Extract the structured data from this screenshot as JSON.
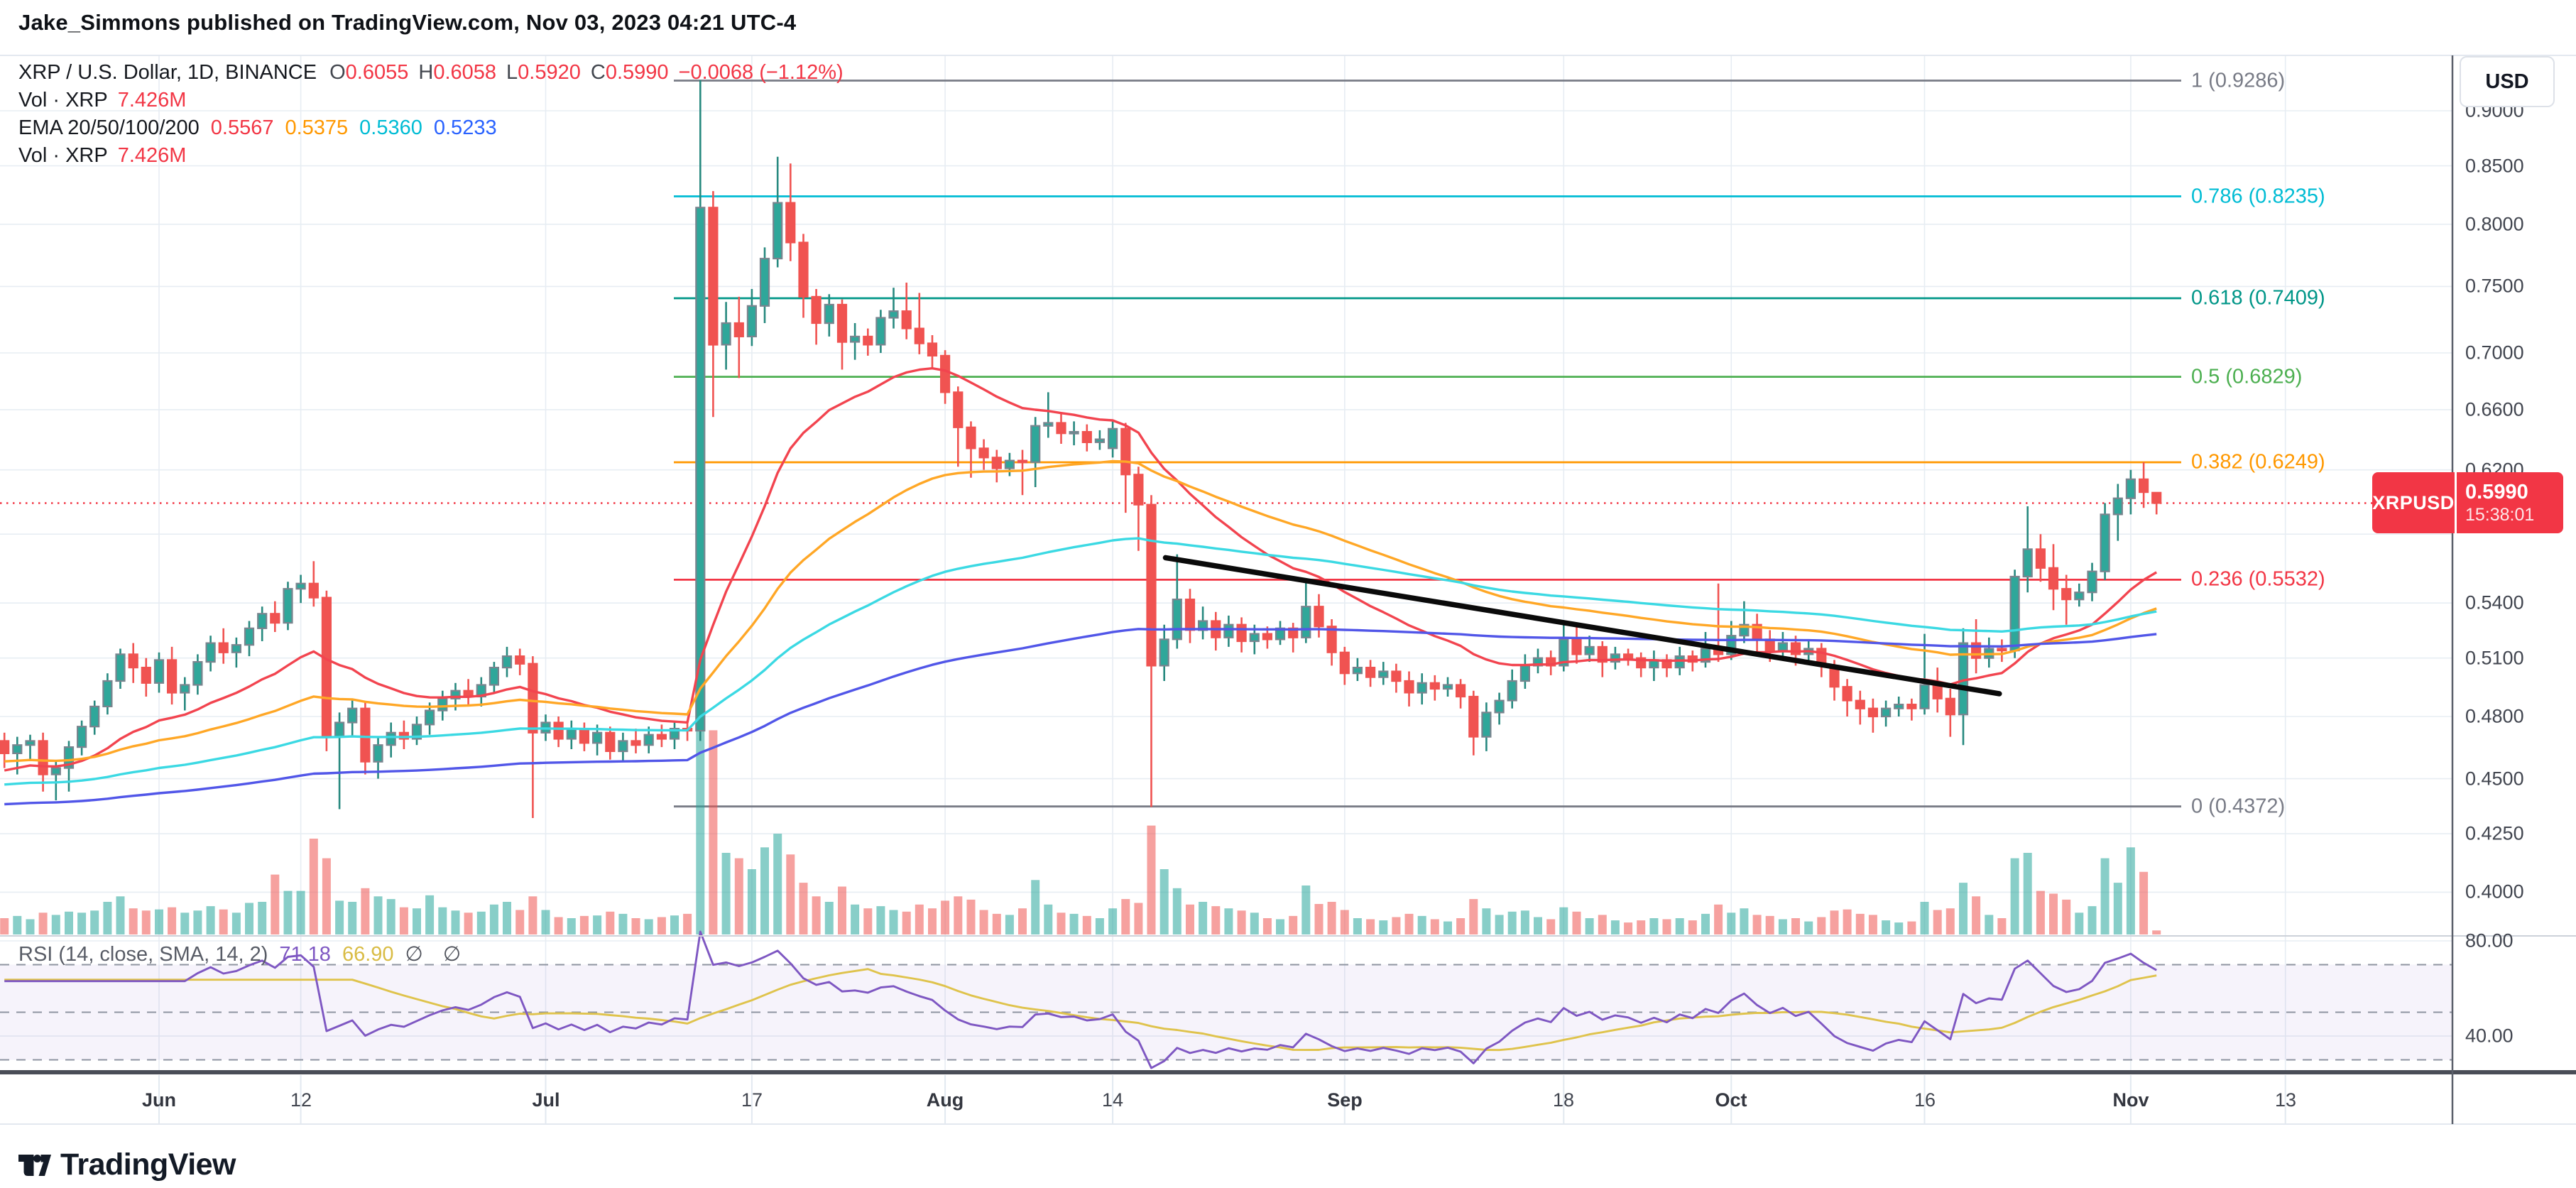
{
  "header": {
    "title": "Jake_Simmons published on TradingView.com, Nov 03, 2023 04:21 UTC-4"
  },
  "legend": {
    "symbol": "XRP / U.S. Dollar, 1D, BINANCE",
    "o_label": "O",
    "o": "0.6055",
    "h_label": "H",
    "h": "0.6058",
    "l_label": "L",
    "l": "0.5920",
    "c_label": "C",
    "c": "0.5990",
    "change": "−0.0068 (−1.12%)",
    "vol_label": "Vol · XRP",
    "vol_value": "7.426M",
    "ema_label": "EMA 20/50/100/200",
    "ema_values": [
      "0.5567",
      "0.5375",
      "0.5360",
      "0.5233"
    ],
    "vol2_label": "Vol · XRP",
    "vol2_value": "7.426M",
    "rsi_label": "RSI (14, close, SMA, 14, 2)",
    "rsi_value": "71.18",
    "rsi_sma_value": "66.90",
    "rsi_empty": "∅ ∅"
  },
  "price_axis": {
    "currency": "USD",
    "ticks": [
      {
        "t": "0.9000",
        "p": 0.9
      },
      {
        "t": "0.8500",
        "p": 0.85
      },
      {
        "t": "0.8000",
        "p": 0.8
      },
      {
        "t": "0.7500",
        "p": 0.75
      },
      {
        "t": "0.7000",
        "p": 0.7
      },
      {
        "t": "0.6600",
        "p": 0.66
      },
      {
        "t": "0.6200",
        "p": 0.62
      },
      {
        "t": "",
        "p": 0.58
      },
      {
        "t": "0.5400",
        "p": 0.54
      },
      {
        "t": "0.5100",
        "p": 0.51
      },
      {
        "t": "0.4800",
        "p": 0.48
      },
      {
        "t": "0.4500",
        "p": 0.45
      },
      {
        "t": "0.4250",
        "p": 0.425
      },
      {
        "t": "0.4000",
        "p": 0.4
      }
    ]
  },
  "time_axis": {
    "ticks": [
      {
        "t": "Jun",
        "i": 12,
        "month": true
      },
      {
        "t": "12",
        "i": 23,
        "month": false
      },
      {
        "t": "Jul",
        "i": 42,
        "month": true
      },
      {
        "t": "17",
        "i": 58,
        "month": false
      },
      {
        "t": "Aug",
        "i": 73,
        "month": true
      },
      {
        "t": "14",
        "i": 86,
        "month": false
      },
      {
        "t": "Sep",
        "i": 104,
        "month": true
      },
      {
        "t": "18",
        "i": 121,
        "month": false
      },
      {
        "t": "Oct",
        "i": 134,
        "month": true
      },
      {
        "t": "16",
        "i": 149,
        "month": false
      },
      {
        "t": "Nov",
        "i": 165,
        "month": true
      },
      {
        "t": "13",
        "i": 177,
        "month": false
      }
    ]
  },
  "rsi_axis": {
    "labels": [
      {
        "t": "80.00",
        "v": 80
      },
      {
        "t": "40.00",
        "v": 40
      }
    ],
    "dashed": [
      70,
      50,
      30
    ],
    "band": [
      30,
      70
    ]
  },
  "fib_levels": [
    {
      "label": "1 (0.9286)",
      "p": 0.9286,
      "c": "#787b86"
    },
    {
      "label": "0.786 (0.8235)",
      "p": 0.8235,
      "c": "#00bcd4"
    },
    {
      "label": "0.618 (0.7409)",
      "p": 0.7409,
      "c": "#009688"
    },
    {
      "label": "0.5 (0.6829)",
      "p": 0.6829,
      "c": "#4caf50"
    },
    {
      "label": "0.382 (0.6249)",
      "p": 0.6249,
      "c": "#ff9800"
    },
    {
      "label": "0.236 (0.5532)",
      "p": 0.5532,
      "c": "#f23645"
    },
    {
      "label": "0 (0.4372)",
      "p": 0.4372,
      "c": "#787b86"
    }
  ],
  "price_line": {
    "price": 0.599,
    "tag": "XRPUSD",
    "value": "0.5990",
    "time": "15:38:01",
    "color": "#f23645"
  },
  "trendline": {
    "i1": 90.1,
    "p1": 0.566,
    "i2": 154.8,
    "p2": 0.4915,
    "color": "#0a0a0a"
  },
  "logo": {
    "text": "TradingView"
  },
  "colors": {
    "up": "#2fa79a",
    "up_border": "#79848e",
    "up_wick": "#27897f",
    "down": "#f05351",
    "vol_up": "#26a69a",
    "vol_down": "#ef5350",
    "grid": "#e7edf3",
    "dotted": "#f23645",
    "rsi": "#7e57c2",
    "rsi_sma": "#dfc34c",
    "band_fill": "#7e57c2",
    "dash_line": "#8f95a1",
    "frame": "#4a4d57",
    "axis_line": "#5a5f6a"
  },
  "chart_data": {
    "type": "candlestick",
    "symbol": "XRPUSD",
    "exchange": "BINANCE",
    "interval": "1D",
    "title": "XRP / U.S. Dollar",
    "start_date": "2023-05-20",
    "end_date": "2023-11-03",
    "price_scale": "log",
    "ylim": [
      0.393,
      0.95
    ],
    "volume_unit": "M XRP",
    "current": {
      "open": 0.6055,
      "high": 0.6058,
      "low": 0.592,
      "close": 0.599,
      "volume_m": 7.426
    },
    "candles": [
      [
        0.468,
        0.472,
        0.455,
        0.462,
        30
      ],
      [
        0.462,
        0.47,
        0.452,
        0.466,
        34
      ],
      [
        0.466,
        0.471,
        0.459,
        0.468,
        28
      ],
      [
        0.468,
        0.472,
        0.444,
        0.452,
        40
      ],
      [
        0.452,
        0.458,
        0.44,
        0.455,
        36
      ],
      [
        0.455,
        0.468,
        0.444,
        0.465,
        42
      ],
      [
        0.465,
        0.478,
        0.461,
        0.475,
        40
      ],
      [
        0.475,
        0.488,
        0.471,
        0.485,
        44
      ],
      [
        0.485,
        0.502,
        0.481,
        0.498,
        60
      ],
      [
        0.498,
        0.515,
        0.494,
        0.512,
        70
      ],
      [
        0.512,
        0.518,
        0.497,
        0.505,
        48
      ],
      [
        0.505,
        0.51,
        0.49,
        0.497,
        44
      ],
      [
        0.497,
        0.513,
        0.492,
        0.509,
        46
      ],
      [
        0.509,
        0.516,
        0.486,
        0.492,
        50
      ],
      [
        0.492,
        0.5,
        0.483,
        0.496,
        40
      ],
      [
        0.496,
        0.512,
        0.491,
        0.508,
        44
      ],
      [
        0.508,
        0.522,
        0.503,
        0.518,
        52
      ],
      [
        0.518,
        0.526,
        0.507,
        0.513,
        46
      ],
      [
        0.513,
        0.521,
        0.505,
        0.517,
        40
      ],
      [
        0.517,
        0.53,
        0.511,
        0.526,
        58
      ],
      [
        0.526,
        0.538,
        0.519,
        0.534,
        60
      ],
      [
        0.534,
        0.541,
        0.524,
        0.529,
        110
      ],
      [
        0.529,
        0.552,
        0.525,
        0.548,
        80
      ],
      [
        0.548,
        0.556,
        0.54,
        0.551,
        80
      ],
      [
        0.551,
        0.564,
        0.538,
        0.543,
        176
      ],
      [
        0.543,
        0.547,
        0.463,
        0.47,
        140
      ],
      [
        0.47,
        0.482,
        0.436,
        0.477,
        62
      ],
      [
        0.477,
        0.488,
        0.47,
        0.484,
        60
      ],
      [
        0.484,
        0.487,
        0.452,
        0.458,
        85
      ],
      [
        0.458,
        0.47,
        0.45,
        0.466,
        70
      ],
      [
        0.466,
        0.477,
        0.46,
        0.472,
        65
      ],
      [
        0.472,
        0.478,
        0.464,
        0.469,
        50
      ],
      [
        0.469,
        0.48,
        0.466,
        0.476,
        48
      ],
      [
        0.476,
        0.487,
        0.471,
        0.483,
        72
      ],
      [
        0.483,
        0.493,
        0.478,
        0.489,
        50
      ],
      [
        0.489,
        0.497,
        0.483,
        0.493,
        44
      ],
      [
        0.493,
        0.499,
        0.486,
        0.49,
        40
      ],
      [
        0.49,
        0.5,
        0.485,
        0.496,
        42
      ],
      [
        0.496,
        0.508,
        0.492,
        0.505,
        55
      ],
      [
        0.505,
        0.516,
        0.5,
        0.511,
        60
      ],
      [
        0.511,
        0.515,
        0.501,
        0.507,
        45
      ],
      [
        0.507,
        0.511,
        0.432,
        0.472,
        70
      ],
      [
        0.472,
        0.481,
        0.468,
        0.477,
        45
      ],
      [
        0.477,
        0.48,
        0.465,
        0.469,
        32
      ],
      [
        0.469,
        0.478,
        0.464,
        0.474,
        30
      ],
      [
        0.474,
        0.477,
        0.463,
        0.467,
        34
      ],
      [
        0.467,
        0.476,
        0.461,
        0.472,
        35
      ],
      [
        0.472,
        0.475,
        0.459,
        0.463,
        42
      ],
      [
        0.463,
        0.472,
        0.458,
        0.468,
        38
      ],
      [
        0.468,
        0.474,
        0.462,
        0.466,
        30
      ],
      [
        0.466,
        0.475,
        0.462,
        0.471,
        28
      ],
      [
        0.471,
        0.476,
        0.465,
        0.469,
        32
      ],
      [
        0.469,
        0.477,
        0.464,
        0.474,
        35
      ],
      [
        0.474,
        0.478,
        0.468,
        0.473,
        38
      ],
      [
        0.473,
        0.929,
        0.468,
        0.814,
        420
      ],
      [
        0.814,
        0.828,
        0.655,
        0.706,
        375
      ],
      [
        0.706,
        0.738,
        0.688,
        0.722,
        150
      ],
      [
        0.722,
        0.742,
        0.682,
        0.712,
        140
      ],
      [
        0.712,
        0.748,
        0.705,
        0.735,
        120
      ],
      [
        0.735,
        0.781,
        0.722,
        0.772,
        160
      ],
      [
        0.772,
        0.858,
        0.765,
        0.818,
        185
      ],
      [
        0.818,
        0.852,
        0.77,
        0.785,
        147
      ],
      [
        0.785,
        0.792,
        0.726,
        0.742,
        95
      ],
      [
        0.742,
        0.748,
        0.706,
        0.722,
        70
      ],
      [
        0.722,
        0.744,
        0.712,
        0.736,
        60
      ],
      [
        0.736,
        0.74,
        0.688,
        0.708,
        88
      ],
      [
        0.708,
        0.722,
        0.695,
        0.712,
        55
      ],
      [
        0.712,
        0.718,
        0.698,
        0.706,
        48
      ],
      [
        0.706,
        0.732,
        0.7,
        0.726,
        52
      ],
      [
        0.726,
        0.749,
        0.718,
        0.731,
        45
      ],
      [
        0.731,
        0.753,
        0.71,
        0.718,
        42
      ],
      [
        0.718,
        0.745,
        0.699,
        0.707,
        55
      ],
      [
        0.707,
        0.713,
        0.689,
        0.698,
        48
      ],
      [
        0.698,
        0.702,
        0.664,
        0.672,
        62
      ],
      [
        0.672,
        0.676,
        0.622,
        0.648,
        70
      ],
      [
        0.648,
        0.652,
        0.615,
        0.634,
        64
      ],
      [
        0.634,
        0.64,
        0.62,
        0.628,
        45
      ],
      [
        0.628,
        0.633,
        0.612,
        0.621,
        38
      ],
      [
        0.621,
        0.631,
        0.616,
        0.626,
        36
      ],
      [
        0.626,
        0.633,
        0.604,
        0.625,
        48
      ],
      [
        0.625,
        0.655,
        0.609,
        0.649,
        100
      ],
      [
        0.649,
        0.672,
        0.641,
        0.651,
        55
      ],
      [
        0.651,
        0.658,
        0.637,
        0.644,
        40
      ],
      [
        0.644,
        0.652,
        0.636,
        0.645,
        38
      ],
      [
        0.645,
        0.65,
        0.632,
        0.638,
        34
      ],
      [
        0.638,
        0.646,
        0.633,
        0.64,
        30
      ],
      [
        0.634,
        0.653,
        0.628,
        0.647,
        48
      ],
      [
        0.647,
        0.651,
        0.593,
        0.617,
        65
      ],
      [
        0.617,
        0.622,
        0.57,
        0.598,
        58
      ],
      [
        0.598,
        0.604,
        0.437,
        0.506,
        200
      ],
      [
        0.506,
        0.528,
        0.498,
        0.52,
        120
      ],
      [
        0.52,
        0.568,
        0.515,
        0.542,
        85
      ],
      [
        0.542,
        0.548,
        0.518,
        0.525,
        55
      ],
      [
        0.525,
        0.538,
        0.52,
        0.53,
        60
      ],
      [
        0.53,
        0.535,
        0.514,
        0.521,
        52
      ],
      [
        0.521,
        0.533,
        0.516,
        0.528,
        48
      ],
      [
        0.528,
        0.532,
        0.513,
        0.519,
        44
      ],
      [
        0.519,
        0.528,
        0.512,
        0.523,
        40
      ],
      [
        0.523,
        0.527,
        0.515,
        0.52,
        30
      ],
      [
        0.52,
        0.53,
        0.517,
        0.526,
        28
      ],
      [
        0.526,
        0.529,
        0.513,
        0.521,
        34
      ],
      [
        0.521,
        0.552,
        0.518,
        0.538,
        90
      ],
      [
        0.538,
        0.545,
        0.521,
        0.527,
        56
      ],
      [
        0.527,
        0.531,
        0.506,
        0.513,
        60
      ],
      [
        0.513,
        0.516,
        0.496,
        0.502,
        45
      ],
      [
        0.502,
        0.51,
        0.498,
        0.505,
        30
      ],
      [
        0.505,
        0.509,
        0.495,
        0.5,
        28
      ],
      [
        0.5,
        0.508,
        0.496,
        0.503,
        26
      ],
      [
        0.503,
        0.507,
        0.492,
        0.498,
        32
      ],
      [
        0.498,
        0.503,
        0.485,
        0.492,
        38
      ],
      [
        0.492,
        0.502,
        0.486,
        0.497,
        34
      ],
      [
        0.497,
        0.501,
        0.488,
        0.494,
        28
      ],
      [
        0.494,
        0.5,
        0.49,
        0.496,
        24
      ],
      [
        0.496,
        0.499,
        0.484,
        0.49,
        30
      ],
      [
        0.49,
        0.493,
        0.461,
        0.47,
        65
      ],
      [
        0.47,
        0.487,
        0.463,
        0.482,
        48
      ],
      [
        0.482,
        0.492,
        0.476,
        0.488,
        36
      ],
      [
        0.488,
        0.504,
        0.484,
        0.498,
        42
      ],
      [
        0.498,
        0.512,
        0.494,
        0.506,
        44
      ],
      [
        0.506,
        0.515,
        0.502,
        0.51,
        32
      ],
      [
        0.51,
        0.514,
        0.501,
        0.506,
        28
      ],
      [
        0.506,
        0.528,
        0.503,
        0.52,
        50
      ],
      [
        0.52,
        0.529,
        0.507,
        0.512,
        42
      ],
      [
        0.512,
        0.522,
        0.508,
        0.516,
        30
      ],
      [
        0.516,
        0.519,
        0.5,
        0.508,
        36
      ],
      [
        0.508,
        0.516,
        0.504,
        0.512,
        26
      ],
      [
        0.512,
        0.515,
        0.506,
        0.51,
        22
      ],
      [
        0.51,
        0.513,
        0.5,
        0.505,
        26
      ],
      [
        0.505,
        0.514,
        0.498,
        0.509,
        30
      ],
      [
        0.509,
        0.512,
        0.5,
        0.505,
        28
      ],
      [
        0.505,
        0.516,
        0.501,
        0.511,
        30
      ],
      [
        0.511,
        0.514,
        0.503,
        0.508,
        26
      ],
      [
        0.508,
        0.524,
        0.505,
        0.515,
        38
      ],
      [
        0.515,
        0.551,
        0.508,
        0.512,
        55
      ],
      [
        0.512,
        0.53,
        0.509,
        0.522,
        40
      ],
      [
        0.522,
        0.541,
        0.518,
        0.528,
        48
      ],
      [
        0.528,
        0.534,
        0.513,
        0.52,
        36
      ],
      [
        0.52,
        0.525,
        0.508,
        0.514,
        34
      ],
      [
        0.514,
        0.524,
        0.51,
        0.518,
        28
      ],
      [
        0.518,
        0.522,
        0.506,
        0.512,
        30
      ],
      [
        0.512,
        0.52,
        0.508,
        0.515,
        24
      ],
      [
        0.515,
        0.518,
        0.5,
        0.506,
        32
      ],
      [
        0.506,
        0.509,
        0.488,
        0.495,
        44
      ],
      [
        0.495,
        0.499,
        0.48,
        0.488,
        46
      ],
      [
        0.488,
        0.493,
        0.476,
        0.484,
        38
      ],
      [
        0.484,
        0.489,
        0.472,
        0.48,
        36
      ],
      [
        0.48,
        0.488,
        0.475,
        0.484,
        26
      ],
      [
        0.484,
        0.49,
        0.48,
        0.486,
        22
      ],
      [
        0.486,
        0.489,
        0.478,
        0.484,
        24
      ],
      [
        0.484,
        0.523,
        0.481,
        0.496,
        60
      ],
      [
        0.496,
        0.505,
        0.482,
        0.489,
        45
      ],
      [
        0.489,
        0.494,
        0.47,
        0.481,
        48
      ],
      [
        0.481,
        0.526,
        0.466,
        0.518,
        95
      ],
      [
        0.518,
        0.531,
        0.502,
        0.51,
        70
      ],
      [
        0.51,
        0.521,
        0.505,
        0.515,
        36
      ],
      [
        0.515,
        0.52,
        0.508,
        0.514,
        30
      ],
      [
        0.514,
        0.559,
        0.51,
        0.555,
        140
      ],
      [
        0.555,
        0.597,
        0.546,
        0.571,
        150
      ],
      [
        0.571,
        0.58,
        0.552,
        0.56,
        80
      ],
      [
        0.56,
        0.574,
        0.536,
        0.548,
        75
      ],
      [
        0.548,
        0.556,
        0.528,
        0.542,
        64
      ],
      [
        0.542,
        0.551,
        0.538,
        0.546,
        40
      ],
      [
        0.546,
        0.563,
        0.541,
        0.558,
        52
      ],
      [
        0.558,
        0.599,
        0.553,
        0.592,
        140
      ],
      [
        0.592,
        0.611,
        0.576,
        0.602,
        95
      ],
      [
        0.602,
        0.62,
        0.592,
        0.614,
        160
      ],
      [
        0.614,
        0.6249,
        0.596,
        0.6058,
        115
      ],
      [
        0.6055,
        0.6058,
        0.592,
        0.599,
        7.426
      ]
    ],
    "emas": [
      {
        "period": 20,
        "seed": 0.453,
        "color": "#f2444f"
      },
      {
        "period": 50,
        "seed": 0.458,
        "color": "#ffa726"
      },
      {
        "period": 100,
        "seed": 0.447,
        "color": "#3bd9e3"
      },
      {
        "period": 200,
        "seed": 0.438,
        "color": "#5156e8"
      }
    ],
    "rsi": {
      "period": 14,
      "sma": 14,
      "color": "#7e57c2",
      "sma_color": "#dfc34c"
    }
  }
}
